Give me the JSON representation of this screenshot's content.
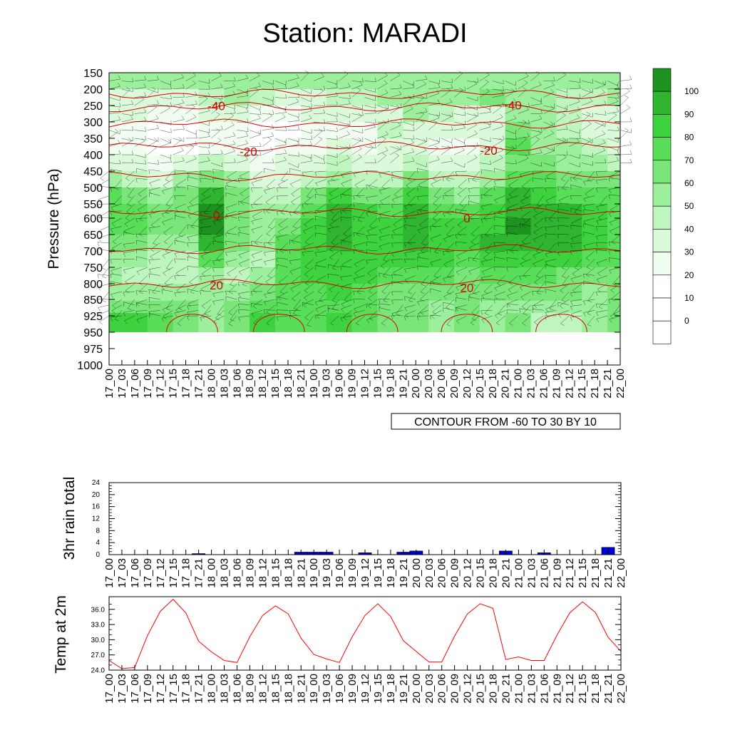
{
  "page": {
    "title": "Station: MARADI"
  },
  "colors": {
    "rh_0": "#ffffff",
    "rh_1": "#f0fdf0",
    "rh_2": "#dafada",
    "rh_3": "#bff5bf",
    "rh_4": "#9cef9c",
    "rh_5": "#7ae67a",
    "rh_6": "#59de59",
    "rh_7": "#3ed23e",
    "rh_8": "#2fb52f",
    "rh_9": "#1e921e",
    "temp_contour": "#e00000",
    "rain_bar": "#0000dd",
    "temp_line": "#ff0000"
  },
  "time_labels": [
    "17_00",
    "17_03",
    "17_06",
    "17_09",
    "17_12",
    "17_15",
    "17_18",
    "17_21",
    "18_00",
    "18_03",
    "18_06",
    "18_09",
    "18_12",
    "18_15",
    "18_18",
    "18_21",
    "19_00",
    "19_03",
    "19_06",
    "19_09",
    "19_12",
    "19_15",
    "19_18",
    "19_21",
    "20_00",
    "20_03",
    "20_06",
    "20_09",
    "20_12",
    "20_15",
    "20_18",
    "20_21",
    "21_00",
    "21_03",
    "21_06",
    "21_09",
    "21_12",
    "21_15",
    "21_18",
    "21_21",
    "22_00"
  ],
  "chart_data": [
    {
      "type": "heatmap",
      "title": "Station: MARADI",
      "ylabel": "Pressure (hPa)",
      "y_ticks": [
        150,
        200,
        250,
        300,
        350,
        400,
        450,
        500,
        550,
        600,
        650,
        700,
        750,
        800,
        850,
        925,
        950,
        975,
        1000
      ],
      "footer_box": "CONTOUR FROM -60 TO 30 BY 10",
      "colorbar_labels": [
        "100",
        "90",
        "80",
        "70",
        "60",
        "50",
        "40",
        "30",
        "20",
        "10",
        "0"
      ],
      "rh_levels_hpa": [
        175,
        225,
        275,
        325,
        375,
        425,
        475,
        525,
        575,
        625,
        675,
        725,
        775,
        825,
        887,
        937
      ],
      "rh_time_indices": [
        0,
        2,
        4,
        6,
        8,
        10,
        12,
        14,
        16,
        18,
        20,
        22,
        24,
        26,
        28,
        30,
        32,
        34,
        36,
        38,
        40
      ],
      "rh_grid": [
        [
          40,
          40,
          40,
          40,
          40,
          40,
          40,
          40,
          40,
          40,
          40,
          40,
          40,
          40,
          40,
          40,
          40,
          40,
          40,
          40,
          40
        ],
        [
          20,
          20,
          20,
          20,
          30,
          40,
          30,
          20,
          20,
          30,
          30,
          40,
          40,
          40,
          40,
          50,
          40,
          40,
          30,
          30,
          40
        ],
        [
          20,
          20,
          10,
          10,
          20,
          20,
          10,
          10,
          20,
          20,
          20,
          20,
          40,
          30,
          20,
          20,
          40,
          40,
          30,
          20,
          20
        ],
        [
          10,
          10,
          0,
          0,
          10,
          10,
          0,
          0,
          10,
          10,
          10,
          30,
          20,
          20,
          20,
          20,
          50,
          40,
          30,
          20,
          20
        ],
        [
          10,
          10,
          0,
          0,
          10,
          10,
          0,
          10,
          10,
          20,
          10,
          20,
          20,
          10,
          10,
          20,
          60,
          40,
          40,
          30,
          20
        ],
        [
          20,
          20,
          10,
          20,
          30,
          20,
          10,
          20,
          20,
          30,
          20,
          20,
          30,
          20,
          20,
          30,
          50,
          50,
          40,
          40,
          30
        ],
        [
          40,
          30,
          20,
          40,
          50,
          40,
          20,
          20,
          30,
          40,
          30,
          30,
          50,
          30,
          30,
          40,
          60,
          60,
          50,
          50,
          50
        ],
        [
          60,
          50,
          40,
          50,
          80,
          50,
          30,
          30,
          50,
          70,
          50,
          50,
          70,
          50,
          40,
          60,
          80,
          70,
          60,
          60,
          60
        ],
        [
          60,
          60,
          50,
          50,
          90,
          50,
          40,
          40,
          60,
          80,
          70,
          60,
          80,
          60,
          60,
          70,
          80,
          80,
          80,
          70,
          60
        ],
        [
          60,
          60,
          50,
          50,
          90,
          50,
          40,
          50,
          70,
          80,
          70,
          70,
          80,
          70,
          70,
          70,
          90,
          80,
          80,
          70,
          60
        ],
        [
          50,
          50,
          40,
          40,
          80,
          50,
          40,
          60,
          70,
          80,
          70,
          70,
          80,
          70,
          70,
          80,
          80,
          80,
          80,
          70,
          60
        ],
        [
          40,
          40,
          30,
          30,
          60,
          40,
          30,
          60,
          70,
          70,
          70,
          70,
          70,
          70,
          60,
          70,
          70,
          70,
          70,
          60,
          60
        ],
        [
          40,
          30,
          30,
          30,
          40,
          30,
          40,
          60,
          70,
          70,
          70,
          60,
          60,
          60,
          50,
          60,
          60,
          60,
          50,
          50,
          50
        ],
        [
          40,
          40,
          40,
          40,
          40,
          40,
          50,
          60,
          60,
          70,
          60,
          50,
          50,
          50,
          50,
          50,
          50,
          50,
          50,
          40,
          50
        ],
        [
          50,
          50,
          50,
          50,
          40,
          50,
          60,
          60,
          60,
          60,
          60,
          50,
          50,
          40,
          50,
          40,
          40,
          40,
          40,
          40,
          50
        ],
        [
          70,
          70,
          60,
          50,
          40,
          50,
          70,
          60,
          60,
          70,
          60,
          50,
          50,
          40,
          50,
          40,
          50,
          30,
          30,
          40,
          50
        ]
      ],
      "temp_contour_labels": [
        {
          "text": "-40",
          "t": 8.4,
          "p": 251
        },
        {
          "text": "-40",
          "t": 31.6,
          "p": 249
        },
        {
          "text": "-20",
          "t": 10.9,
          "p": 390
        },
        {
          "text": "-20",
          "t": 29.7,
          "p": 387
        },
        {
          "text": "0",
          "t": 8.4,
          "p": 590
        },
        {
          "text": "0",
          "t": 28.0,
          "p": 600
        },
        {
          "text": "20",
          "t": 8.4,
          "p": 805
        },
        {
          "text": "20",
          "t": 28.0,
          "p": 812
        }
      ],
      "temp_contour_pressures": [
        215,
        255,
        305,
        375,
        465,
        580,
        695,
        800
      ]
    },
    {
      "type": "bar",
      "ylabel": "3hr rain total",
      "ylim": [
        0,
        24
      ],
      "y_ticks": [
        0,
        4,
        8,
        12,
        16,
        20,
        24
      ],
      "values": [
        0,
        0,
        0,
        0,
        0,
        0,
        0,
        0.3,
        0,
        0,
        0,
        0,
        0,
        0,
        0,
        0.8,
        0.8,
        0.8,
        0,
        0,
        0.6,
        0,
        0,
        0.8,
        1.2,
        0,
        0,
        0,
        0,
        0,
        0,
        1.2,
        0,
        0,
        0.6,
        0,
        0,
        0,
        0,
        2.4,
        0
      ]
    },
    {
      "type": "line",
      "ylabel": "Temp at 2m",
      "ylim": [
        24.0,
        38.5
      ],
      "y_ticks": [
        "24.0",
        "27.0",
        "30.0",
        "33.0",
        "36.0"
      ],
      "values": [
        25.9,
        24.3,
        24.5,
        30.8,
        35.6,
        38.0,
        35.3,
        29.7,
        27.6,
        25.9,
        25.5,
        30.6,
        34.8,
        36.7,
        35.1,
        30.3,
        27.1,
        26.2,
        25.5,
        30.6,
        34.8,
        37.1,
        34.6,
        29.8,
        27.7,
        25.6,
        25.6,
        30.7,
        35.1,
        37.1,
        36.2,
        26.1,
        26.6,
        25.9,
        25.9,
        30.9,
        35.3,
        37.5,
        35.4,
        30.5,
        27.7
      ]
    }
  ]
}
